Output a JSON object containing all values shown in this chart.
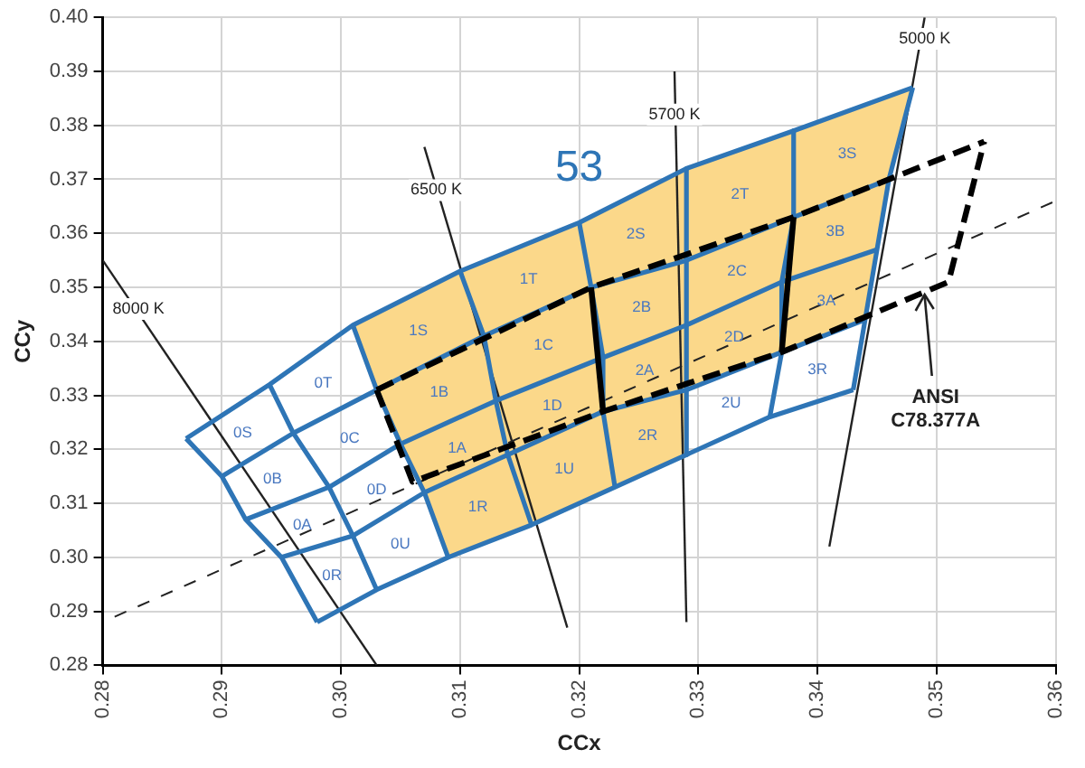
{
  "chart_data": {
    "type": "line",
    "xlabel": "CCx",
    "ylabel": "CCy",
    "xlim": [
      0.28,
      0.36
    ],
    "ylim": [
      0.28,
      0.4
    ],
    "xticks": [
      0.28,
      0.29,
      {
        "value": 0.3,
        "label": "0.30"
      },
      0.31,
      0.32,
      0.33,
      0.34,
      0.35,
      0.36
    ],
    "yticks": [
      0.28,
      0.29,
      {
        "value": 0.3,
        "label": "0.30"
      },
      0.31,
      0.32,
      0.33,
      0.34,
      0.35,
      0.36,
      0.37,
      0.38,
      0.39,
      {
        "value": 0.4,
        "label": "0.40"
      }
    ],
    "grid": true,
    "legend": false,
    "marker": "none",
    "series": [
      {
        "type": "area",
        "color": "#fbd88a",
        "x": [
          0.301,
          0.31,
          0.32,
          0.329,
          0.338,
          0.348,
          0.346,
          0.345,
          0.344,
          0.337,
          0.329,
          0.329,
          0.323,
          0.316,
          0.309,
          0.307,
          0.305,
          0.303,
          0.301
        ],
        "values": [
          0.343,
          0.353,
          0.362,
          0.372,
          0.379,
          0.387,
          0.37,
          0.357,
          0.344,
          0.338,
          0.331,
          0.319,
          0.313,
          0.306,
          0.3,
          0.312,
          0.321,
          0.331,
          0.343
        ]
      },
      {
        "color": "#2e75b6",
        "line_style": "solid",
        "x": [
          0.287,
          0.294,
          0.301,
          0.31,
          0.32,
          0.329,
          0.338,
          0.348
        ],
        "values": [
          0.322,
          0.332,
          0.343,
          0.353,
          0.362,
          0.372,
          0.379,
          0.387
        ]
      },
      {
        "color": "#2e75b6",
        "line_style": "solid",
        "x": [
          0.29,
          0.296,
          0.303,
          0.312,
          0.321,
          0.329,
          0.338,
          0.346
        ],
        "values": [
          0.315,
          0.323,
          0.331,
          0.341,
          0.35,
          0.355,
          0.363,
          0.37
        ]
      },
      {
        "color": "#2e75b6",
        "line_style": "solid",
        "x": [
          0.292,
          0.299,
          0.305,
          0.313,
          0.322,
          0.329,
          0.337,
          0.345
        ],
        "values": [
          0.307,
          0.313,
          0.321,
          0.329,
          0.337,
          0.343,
          0.351,
          0.357
        ]
      },
      {
        "color": "#2e75b6",
        "line_style": "solid",
        "x": [
          0.295,
          0.301,
          0.307,
          0.314,
          0.322,
          0.329,
          0.337,
          0.344
        ],
        "values": [
          0.3,
          0.304,
          0.312,
          0.319,
          0.327,
          0.331,
          0.338,
          0.344
        ]
      },
      {
        "color": "#2e75b6",
        "line_style": "solid",
        "x": [
          0.298,
          0.303,
          0.309,
          0.316,
          0.323,
          0.329,
          0.336,
          0.343
        ],
        "values": [
          0.288,
          0.294,
          0.3,
          0.306,
          0.313,
          0.319,
          0.326,
          0.331
        ]
      },
      {
        "color": "#2e75b6",
        "line_style": "solid",
        "x": [
          0.287,
          0.29,
          0.292,
          0.295,
          0.298
        ],
        "values": [
          0.322,
          0.315,
          0.307,
          0.3,
          0.288
        ]
      },
      {
        "color": "#2e75b6",
        "line_style": "solid",
        "x": [
          0.294,
          0.296,
          0.299,
          0.301,
          0.303
        ],
        "values": [
          0.332,
          0.323,
          0.313,
          0.304,
          0.294
        ]
      },
      {
        "color": "#2e75b6",
        "line_style": "solid",
        "x": [
          0.301,
          0.303,
          0.305,
          0.307,
          0.309
        ],
        "values": [
          0.343,
          0.331,
          0.321,
          0.312,
          0.3
        ]
      },
      {
        "color": "#2e75b6",
        "line_style": "solid",
        "x": [
          0.31,
          0.312,
          0.313,
          0.314,
          0.316
        ],
        "values": [
          0.353,
          0.341,
          0.329,
          0.319,
          0.306
        ]
      },
      {
        "color": "#2e75b6",
        "line_style": "solid",
        "x": [
          0.32,
          0.321,
          0.322,
          0.322,
          0.323
        ],
        "values": [
          0.362,
          0.35,
          0.337,
          0.327,
          0.313
        ]
      },
      {
        "color": "#2e75b6",
        "line_style": "solid",
        "x": [
          0.329,
          0.329,
          0.329,
          0.329,
          0.329
        ],
        "values": [
          0.372,
          0.355,
          0.343,
          0.331,
          0.319
        ]
      },
      {
        "color": "#2e75b6",
        "line_style": "solid",
        "x": [
          0.338,
          0.338,
          0.337,
          0.337,
          0.336
        ],
        "values": [
          0.379,
          0.363,
          0.351,
          0.338,
          0.326
        ]
      },
      {
        "color": "#2e75b6",
        "line_style": "solid",
        "x": [
          0.348,
          0.346,
          0.345,
          0.344,
          0.343
        ],
        "values": [
          0.387,
          0.37,
          0.357,
          0.344,
          0.331
        ]
      },
      {
        "color": "#222222",
        "line_style": "solid",
        "x": [
          0.28,
          0.303
        ],
        "values": [
          0.355,
          0.28
        ]
      },
      {
        "color": "#222222",
        "line_style": "solid",
        "x": [
          0.307,
          0.319
        ],
        "values": [
          0.376,
          0.287
        ]
      },
      {
        "color": "#222222",
        "line_style": "solid",
        "x": [
          0.328,
          0.329
        ],
        "values": [
          0.39,
          0.288
        ]
      },
      {
        "color": "#222222",
        "line_style": "solid",
        "x": [
          0.349,
          0.341
        ],
        "values": [
          0.4,
          0.302
        ]
      },
      {
        "color": "#222222",
        "line_style": "dashed",
        "x": [
          0.281,
          0.36
        ],
        "values": [
          0.289,
          0.366
        ]
      },
      {
        "color": "#000000",
        "line_style": "dashed",
        "x": [
          0.303,
          0.321,
          0.338,
          0.354
        ],
        "values": [
          0.331,
          0.35,
          0.363,
          0.377
        ]
      },
      {
        "color": "#000000",
        "line_style": "dashed",
        "x": [
          0.303,
          0.306,
          0.322,
          0.337,
          0.351,
          0.354
        ],
        "values": [
          0.331,
          0.314,
          0.327,
          0.338,
          0.351,
          0.377
        ]
      },
      {
        "color": "#000000",
        "line_style": "solid",
        "x": [
          0.321,
          0.322
        ],
        "values": [
          0.35,
          0.327
        ]
      },
      {
        "color": "#000000",
        "line_style": "solid",
        "x": [
          0.338,
          0.337
        ],
        "values": [
          0.363,
          0.338
        ]
      }
    ],
    "annotations": [
      "0S",
      "0B",
      "0A",
      "0R",
      "0T",
      "0C",
      "0D",
      "0U",
      "1S",
      "1B",
      "1A",
      "1R",
      "1T",
      "1C",
      "1D",
      "1U",
      "2S",
      "2B",
      "2A",
      "2R",
      "2T",
      "2C",
      "2D",
      "2U",
      "3S",
      "3B",
      "3A",
      "3R",
      "53",
      {
        "text": "8000 K",
        "x": 0.283,
        "y": 0.346
      },
      {
        "text": "6500 K",
        "x": 0.308,
        "y": 0.368
      },
      {
        "text": "5700 K",
        "x": 0.328,
        "y": 0.382
      },
      {
        "text": "5000 K",
        "x": 0.349,
        "y": 0.396
      },
      {
        "text": "ANSI C78.377A",
        "x": 0.349,
        "y": 0.349
      }
    ]
  }
}
